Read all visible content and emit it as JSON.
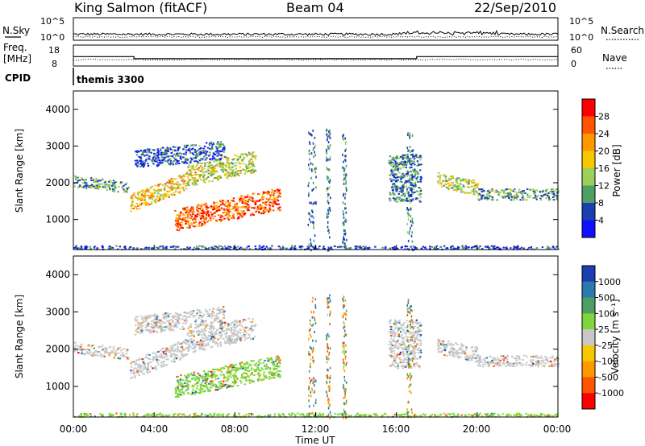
{
  "header": {
    "station": "King Salmon (fitACF)",
    "beam": "Beam 04",
    "date": "22/Sep/2010"
  },
  "top_panel": {
    "left_label": "N.Sky",
    "right_label": "N.Search",
    "yticks_left": [
      "10^5",
      "10^0"
    ],
    "yticks_right": [
      "10^5",
      "10^0"
    ]
  },
  "freq_panel": {
    "left_label_line1": "Freq.",
    "left_label_line2": "[MHz]",
    "right_label": "Nave",
    "yticks_left": [
      "18",
      "8"
    ],
    "yticks_right": [
      "60",
      "0"
    ]
  },
  "cpid": {
    "label": "CPID",
    "value": "themis 3300"
  },
  "power_panel": {
    "ylabel": "Slant Range [km]",
    "colorbar_label": "Power [dB]",
    "colorbar_ticks": [
      "28",
      "24",
      "20",
      "16",
      "12",
      "8",
      "4"
    ],
    "colorbar_colors": [
      "#ff0000",
      "#ff5500",
      "#ff9900",
      "#f5c800",
      "#9bd15a",
      "#4e9e68",
      "#1c3fb0",
      "#1010ff"
    ]
  },
  "velocity_panel": {
    "ylabel": "Slant Range [km]",
    "colorbar_label": "Velocity [m s⁻¹]",
    "colorbar_ticks": [
      "1000",
      "500",
      "100",
      "25",
      "-25",
      "-100",
      "-500",
      "-1000"
    ],
    "colorbar_colors": [
      "#1c3fb0",
      "#2a7ab0",
      "#4e9e68",
      "#7fd63a",
      "#c8c8c8",
      "#f5c800",
      "#ff9900",
      "#ff5500",
      "#ff0000"
    ]
  },
  "x_axis": {
    "ticks": [
      "00:00",
      "04:00",
      "08:00",
      "12:00",
      "16:00",
      "20:00",
      "00:00"
    ],
    "label": "Time UT"
  },
  "chart_data": [
    {
      "type": "line",
      "panel": "noise",
      "series": [
        {
          "name": "N.Sky",
          "style": "solid"
        },
        {
          "name": "N.Search",
          "style": "dotted"
        }
      ],
      "xlim_hours": [
        0,
        24
      ]
    },
    {
      "type": "line",
      "panel": "frequency",
      "xlim_hours": [
        0,
        24
      ],
      "ylim_left_mhz": [
        8,
        18
      ],
      "ylim_right_nave": [
        0,
        60
      ],
      "frequency_steps": [
        {
          "start_h": 0,
          "end_h": 3,
          "freq_mhz": 12.5
        },
        {
          "start_h": 3,
          "end_h": 17,
          "freq_mhz": 11.5
        },
        {
          "start_h": 17,
          "end_h": 24,
          "freq_mhz": 12.5
        }
      ],
      "nave_approx": 20
    },
    {
      "type": "heatmap",
      "panel": "power",
      "xlabel": "Time UT",
      "ylabel": "Slant Range [km]",
      "xlim_hours": [
        0,
        24
      ],
      "ylim_km": [
        180,
        4500
      ],
      "zlim_db": [
        0,
        30
      ],
      "features": [
        {
          "t0": 0.0,
          "t1": 2.7,
          "r0": 1900,
          "r1": 2200,
          "slope": -60,
          "value_db": 10
        },
        {
          "t0": 2.8,
          "t1": 5.6,
          "r0": 1200,
          "r1": 1700,
          "slope": 220,
          "value_db": 18
        },
        {
          "t0": 5.6,
          "t1": 9.0,
          "r0": 1900,
          "r1": 2500,
          "slope": 120,
          "value_db": 14
        },
        {
          "t0": 5.0,
          "t1": 10.2,
          "r0": 700,
          "r1": 1300,
          "slope": 110,
          "value_db": 24
        },
        {
          "t0": 3.0,
          "t1": 7.5,
          "r0": 2400,
          "r1": 2900,
          "slope": 60,
          "value_db": 6
        },
        {
          "t0": 15.6,
          "t1": 17.2,
          "r0": 1500,
          "r1": 2800,
          "slope": 0,
          "value_db": 8
        },
        {
          "t0": 18.0,
          "t1": 20.0,
          "r0": 1900,
          "r1": 2300,
          "slope": -120,
          "value_db": 14
        },
        {
          "t0": 20.0,
          "t1": 24.0,
          "r0": 1550,
          "r1": 1850,
          "slope": 0,
          "value_db": 10
        },
        {
          "t0": 0.0,
          "t1": 24.0,
          "r0": 180,
          "r1": 300,
          "slope": 0,
          "value_db": 5
        }
      ]
    },
    {
      "type": "heatmap",
      "panel": "velocity",
      "xlabel": "Time UT",
      "ylabel": "Slant Range [km]",
      "xlim_hours": [
        0,
        24
      ],
      "ylim_km": [
        180,
        4500
      ],
      "zlim_ms": [
        -1000,
        1000
      ],
      "features": [
        {
          "t0": 0.0,
          "t1": 2.7,
          "r0": 1900,
          "r1": 2200,
          "slope": -60,
          "value_ms": 0
        },
        {
          "t0": 2.8,
          "t1": 5.6,
          "r0": 1200,
          "r1": 1700,
          "slope": 220,
          "value_ms": 0
        },
        {
          "t0": 5.6,
          "t1": 9.0,
          "r0": 1900,
          "r1": 2500,
          "slope": 120,
          "value_ms": 0
        },
        {
          "t0": 5.0,
          "t1": 10.2,
          "r0": 700,
          "r1": 1300,
          "slope": 110,
          "value_ms": 60
        },
        {
          "t0": 3.0,
          "t1": 7.5,
          "r0": 2400,
          "r1": 2900,
          "slope": 60,
          "value_ms": 0
        },
        {
          "t0": 15.6,
          "t1": 17.2,
          "r0": 1500,
          "r1": 2800,
          "slope": 0,
          "value_ms": 0
        },
        {
          "t0": 18.0,
          "t1": 20.0,
          "r0": 1900,
          "r1": 2300,
          "slope": -120,
          "value_ms": 0
        },
        {
          "t0": 20.0,
          "t1": 24.0,
          "r0": 1550,
          "r1": 1850,
          "slope": 0,
          "value_ms": 0
        },
        {
          "t0": 0.0,
          "t1": 24.0,
          "r0": 180,
          "r1": 300,
          "slope": 0,
          "value_ms": 40
        }
      ]
    }
  ]
}
